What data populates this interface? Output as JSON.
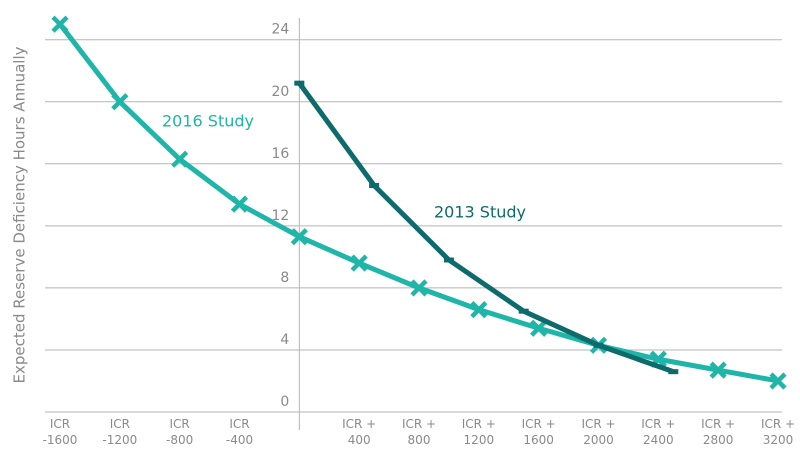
{
  "chart_data": {
    "type": "line",
    "y_label": "Expected Reserve Deficiency Hours Annually",
    "series": [
      {
        "name": "2016 Study",
        "color": "#1fb5a8",
        "marker": "x",
        "x": [
          -1600,
          -1200,
          -800,
          -400,
          0,
          400,
          800,
          1200,
          1600,
          2000,
          2400,
          2800,
          3200
        ],
        "values": [
          25,
          20,
          16.3,
          13.4,
          11.3,
          9.6,
          8.0,
          6.6,
          5.4,
          4.3,
          3.4,
          2.7,
          2.0
        ]
      },
      {
        "name": "2013 Study",
        "color": "#0e6b6b",
        "marker": "bar",
        "x": [
          0,
          500,
          1000,
          1500,
          2000,
          2500
        ],
        "values": [
          21.2,
          14.6,
          9.8,
          6.5,
          4.3,
          2.6
        ]
      }
    ],
    "xlim": [
      -1600,
      3200
    ],
    "ylim": [
      0,
      25.4
    ],
    "xticks": [
      {
        "value": -1600,
        "label": "ICR -1600"
      },
      {
        "value": -1200,
        "label": "ICR -1200"
      },
      {
        "value": -800,
        "label": "ICR -800"
      },
      {
        "value": -400,
        "label": "ICR -400"
      },
      {
        "value": 400,
        "label": "ICR + 400"
      },
      {
        "value": 800,
        "label": "ICR + 800"
      },
      {
        "value": 1200,
        "label": "ICR + 1200"
      },
      {
        "value": 1600,
        "label": "ICR + 1600"
      },
      {
        "value": 2000,
        "label": "ICR + 2000"
      },
      {
        "value": 2400,
        "label": "ICR + 2400"
      },
      {
        "value": 2800,
        "label": "ICR + 2800"
      },
      {
        "value": 3200,
        "label": "ICR + 3200"
      }
    ],
    "yticks": [
      0,
      4,
      8,
      12,
      16,
      20,
      24
    ],
    "grid": true
  }
}
